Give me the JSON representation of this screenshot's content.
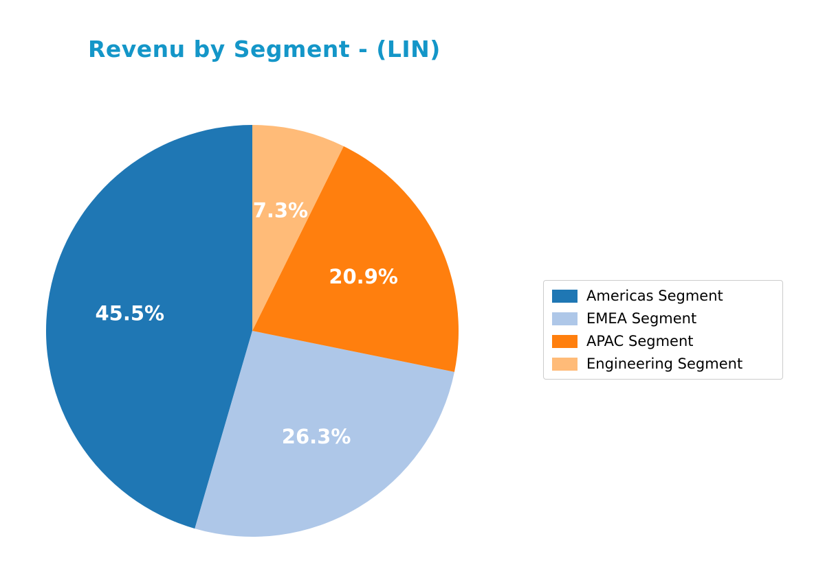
{
  "chart_data": {
    "type": "pie",
    "title": "Revenu by Segment - (LIN)",
    "title_color": "#1496c8",
    "labels": [
      "Americas Segment",
      "EMEA Segment",
      "APAC Segment",
      "Engineering Segment"
    ],
    "values": [
      45.5,
      26.3,
      20.9,
      7.3
    ],
    "value_labels": [
      "45.5%",
      "26.3%",
      "20.9%",
      "7.3%"
    ],
    "colors": [
      "#1f77b4",
      "#aec7e8",
      "#ff7f0e",
      "#ffbb78"
    ],
    "start_angle": 90,
    "counterclockwise": true,
    "label_distance": 0.6,
    "legend_position": "right"
  }
}
